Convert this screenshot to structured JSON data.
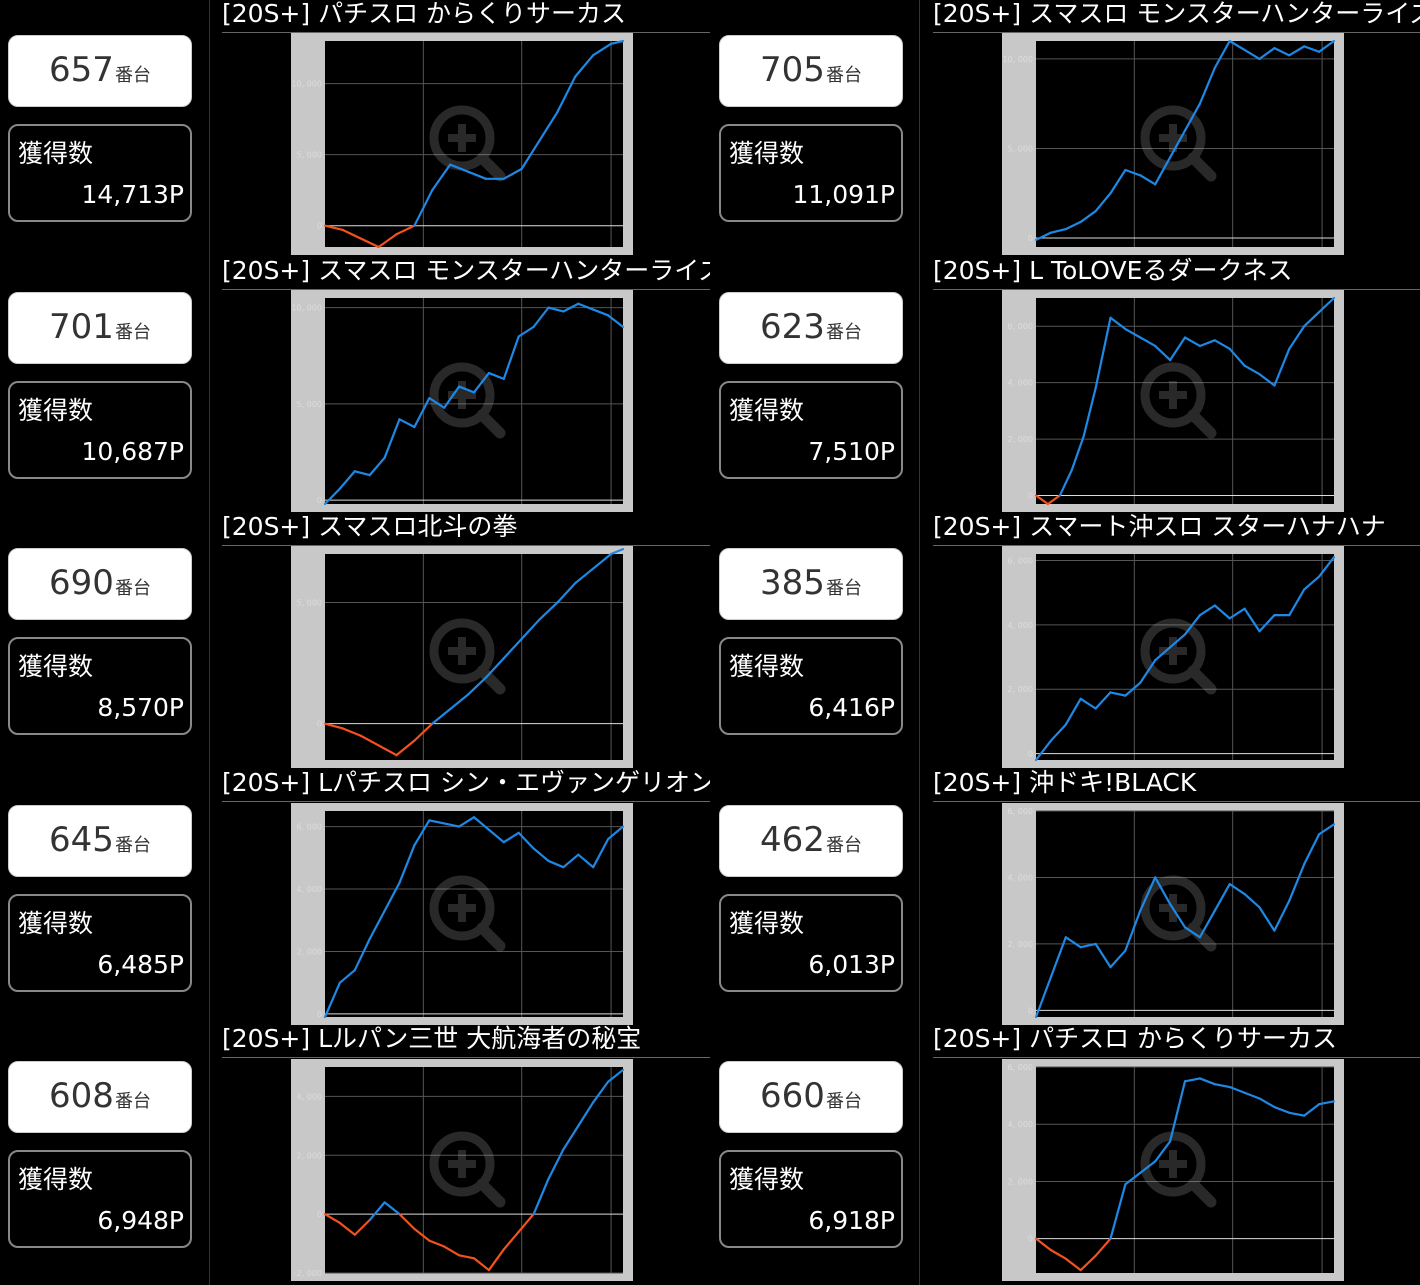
{
  "unit_suffix": "番台",
  "gain_label": "獲得数",
  "colors": {
    "positive": "#1e88e5",
    "negative": "#f4511e",
    "frame": "#c8c8c8",
    "plot": "#000000",
    "grid": "#555555",
    "zero_line": "#dddddd"
  },
  "cards": [
    {
      "machine": "657",
      "gain": "14,713P",
      "title": "[20S+] パチスロ からくりサーカス"
    },
    {
      "machine": "705",
      "gain": "11,091P",
      "title": "[20S+] スマスロ モンスターハンターライズ"
    },
    {
      "machine": "701",
      "gain": "10,687P",
      "title": "[20S+] スマスロ モンスターハンターライズ"
    },
    {
      "machine": "623",
      "gain": "7,510P",
      "title": "[20S+] L ToLOVEるダークネス"
    },
    {
      "machine": "690",
      "gain": "8,570P",
      "title": "[20S+] スマスロ北斗の拳"
    },
    {
      "machine": "385",
      "gain": "6,416P",
      "title": "[20S+] スマート沖スロ スターハナハナ"
    },
    {
      "machine": "645",
      "gain": "6,485P",
      "title": "[20S+] Lパチスロ シン・エヴァンゲリオン"
    },
    {
      "machine": "462",
      "gain": "6,013P",
      "title": "[20S+] 沖ドキ!BLACK"
    },
    {
      "machine": "608",
      "gain": "6,948P",
      "title": "[20S+] Lルパン三世 大航海者の秘宝"
    },
    {
      "machine": "660",
      "gain": "6,918P",
      "title": "[20S+] パチスロ からくりサーカス"
    }
  ],
  "chart_data": [
    {
      "type": "line",
      "ylim": [
        -1500,
        13000
      ],
      "yticks": [
        "0",
        "5, 000",
        "10, 000"
      ],
      "ytick_values": [
        0,
        5000,
        10000
      ],
      "x": [
        0,
        6,
        12,
        18,
        24,
        30,
        36,
        42,
        48,
        54,
        60,
        66,
        72,
        78,
        84,
        90,
        96,
        100
      ],
      "y": [
        0,
        -300,
        -900,
        -1500,
        -600,
        0,
        2500,
        4300,
        3800,
        3300,
        3300,
        4000,
        6000,
        8000,
        10500,
        12000,
        12800,
        13000
      ]
    },
    {
      "type": "line",
      "ylim": [
        -500,
        11000
      ],
      "yticks": [
        "0",
        "5, 000",
        "10, 000"
      ],
      "ytick_values": [
        0,
        5000,
        10000
      ],
      "x": [
        0,
        5,
        10,
        15,
        20,
        25,
        30,
        35,
        40,
        45,
        50,
        55,
        60,
        65,
        70,
        75,
        80,
        85,
        90,
        95,
        100
      ],
      "y": [
        -100,
        300,
        500,
        900,
        1500,
        2500,
        3800,
        3500,
        3000,
        4500,
        6000,
        7500,
        9500,
        11000,
        10500,
        10000,
        10600,
        10200,
        10700,
        10400,
        11000
      ]
    },
    {
      "type": "line",
      "ylim": [
        -200,
        10500
      ],
      "yticks": [
        "0",
        "5, 000",
        "10, 000"
      ],
      "ytick_values": [
        0,
        5000,
        10000
      ],
      "x": [
        0,
        5,
        10,
        15,
        20,
        25,
        30,
        35,
        40,
        45,
        50,
        55,
        60,
        65,
        70,
        75,
        80,
        85,
        90,
        95,
        100
      ],
      "y": [
        -200,
        600,
        1500,
        1300,
        2200,
        4200,
        3800,
        5300,
        4800,
        5900,
        5600,
        6600,
        6300,
        8500,
        9000,
        10000,
        9800,
        10200,
        9900,
        9600,
        9000
      ]
    },
    {
      "type": "line",
      "ylim": [
        -300,
        7000
      ],
      "yticks": [
        "0",
        "2, 000",
        "4, 000",
        "6, 000"
      ],
      "ytick_values": [
        0,
        2000,
        4000,
        6000
      ],
      "x": [
        0,
        4,
        8,
        12,
        16,
        20,
        25,
        30,
        35,
        40,
        45,
        50,
        55,
        60,
        65,
        70,
        75,
        80,
        85,
        90,
        95,
        100
      ],
      "y": [
        0,
        -300,
        0,
        900,
        2100,
        3800,
        6300,
        5900,
        5600,
        5300,
        4800,
        5600,
        5300,
        5500,
        5200,
        4600,
        4300,
        3900,
        5200,
        6000,
        6500,
        7000
      ]
    },
    {
      "type": "line",
      "ylim": [
        -1500,
        7000
      ],
      "yticks": [
        "0",
        "5, 000"
      ],
      "ytick_values": [
        0,
        5000
      ],
      "x": [
        0,
        6,
        12,
        18,
        24,
        30,
        36,
        42,
        48,
        54,
        60,
        66,
        72,
        78,
        84,
        90,
        96,
        100
      ],
      "y": [
        0,
        -200,
        -500,
        -900,
        -1300,
        -700,
        0,
        600,
        1200,
        1900,
        2700,
        3500,
        4300,
        5000,
        5800,
        6400,
        7000,
        7200
      ]
    },
    {
      "type": "line",
      "ylim": [
        -200,
        6200
      ],
      "yticks": [
        "0",
        "2, 000",
        "4, 000",
        "6, 000"
      ],
      "ytick_values": [
        0,
        2000,
        4000,
        6000
      ],
      "x": [
        0,
        5,
        10,
        15,
        20,
        25,
        30,
        35,
        40,
        45,
        50,
        55,
        60,
        65,
        70,
        75,
        80,
        85,
        90,
        95,
        100
      ],
      "y": [
        -200,
        400,
        900,
        1700,
        1400,
        1900,
        1800,
        2200,
        2900,
        3300,
        3700,
        4300,
        4600,
        4200,
        4500,
        3800,
        4300,
        4300,
        5100,
        5500,
        6100
      ]
    },
    {
      "type": "line",
      "ylim": [
        -100,
        6500
      ],
      "yticks": [
        "0",
        "2, 000",
        "4, 000",
        "6, 000"
      ],
      "ytick_values": [
        0,
        2000,
        4000,
        6000
      ],
      "x": [
        0,
        5,
        10,
        15,
        20,
        25,
        30,
        35,
        40,
        45,
        50,
        55,
        60,
        65,
        70,
        75,
        80,
        85,
        90,
        95,
        100
      ],
      "y": [
        -100,
        1000,
        1400,
        2400,
        3300,
        4200,
        5400,
        6200,
        6100,
        6000,
        6300,
        5900,
        5500,
        5800,
        5300,
        4900,
        4700,
        5100,
        4700,
        5600,
        6000
      ]
    },
    {
      "type": "line",
      "ylim": [
        -200,
        6000
      ],
      "yticks": [
        "0",
        "2, 000",
        "4, 000",
        "6, 000"
      ],
      "ytick_values": [
        0,
        2000,
        4000,
        6000
      ],
      "x": [
        0,
        5,
        10,
        15,
        20,
        25,
        30,
        35,
        40,
        45,
        50,
        55,
        60,
        65,
        70,
        75,
        80,
        85,
        90,
        95,
        100
      ],
      "y": [
        -200,
        1000,
        2200,
        1900,
        2000,
        1300,
        1800,
        3000,
        4000,
        3200,
        2500,
        2200,
        3000,
        3800,
        3500,
        3100,
        2400,
        3300,
        4400,
        5300,
        5600
      ]
    },
    {
      "type": "line",
      "ylim": [
        -2000,
        5000
      ],
      "yticks": [
        "-2, 000",
        "0",
        "2, 000",
        "4, 000"
      ],
      "ytick_values": [
        -2000,
        0,
        2000,
        4000
      ],
      "x": [
        0,
        5,
        10,
        15,
        20,
        25,
        30,
        35,
        40,
        45,
        50,
        55,
        60,
        65,
        70,
        75,
        80,
        85,
        90,
        95,
        100
      ],
      "y": [
        0,
        -300,
        -700,
        -200,
        400,
        0,
        -500,
        -900,
        -1100,
        -1400,
        -1500,
        -1900,
        -1200,
        -600,
        0,
        1200,
        2200,
        3000,
        3800,
        4500,
        4900
      ]
    },
    {
      "type": "line",
      "ylim": [
        -1200,
        6000
      ],
      "yticks": [
        "0",
        "2, 000",
        "4, 000",
        "6, 000"
      ],
      "ytick_values": [
        0,
        2000,
        4000,
        6000
      ],
      "x": [
        0,
        5,
        10,
        15,
        20,
        25,
        30,
        35,
        40,
        45,
        50,
        55,
        60,
        65,
        70,
        75,
        80,
        85,
        90,
        95,
        100
      ],
      "y": [
        0,
        -400,
        -700,
        -1100,
        -600,
        0,
        1900,
        2300,
        2700,
        3400,
        5500,
        5600,
        5400,
        5300,
        5100,
        4900,
        4600,
        4400,
        4300,
        4700,
        4800
      ]
    }
  ]
}
